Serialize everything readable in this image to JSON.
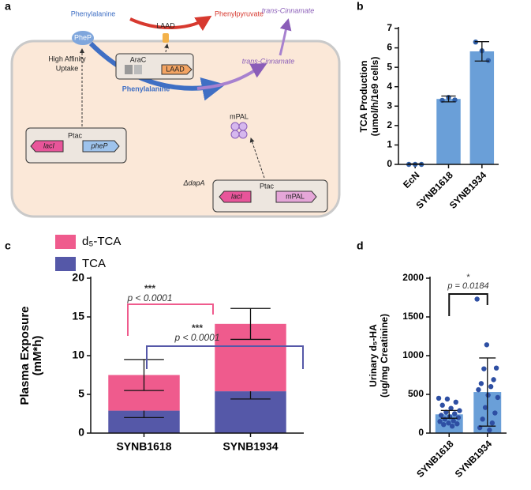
{
  "panel_labels": [
    "a",
    "b",
    "c",
    "d"
  ],
  "diagram": {
    "phenylalanine_out": "Phenylalanine",
    "phep": "PheP",
    "laad_enzyme": "LAAD",
    "phenylpyruvate": "Phenylpyruvate",
    "cinnamate_out": "trans-Cinnamate",
    "uptake": [
      "High Affinity",
      "Uptake"
    ],
    "arac": "AraC",
    "laad_gene": "LAAD",
    "cinnamate_in": "trans-Cinnamate",
    "phenylalanine_in": "Phenylalanine",
    "mpal_enzyme": "mPAL",
    "lacI_1": "lacI",
    "ptac_1": "Ptac",
    "phep_gene": "pheP",
    "dapa": "ΔdapA",
    "lacI_2": "lacI",
    "ptac_2": "Ptac",
    "mpal_gene": "mPAL"
  },
  "chart_data": [
    {
      "type": "bar",
      "ylabel": [
        "TCA Production",
        "(umol/h/1e9 cells)"
      ],
      "categories": [
        "EcN",
        "SYNB1618",
        "SYNB1934"
      ],
      "series": [
        {
          "color": "#6a9fd8",
          "point_color": "#2f5fa8",
          "values": [
            0.02,
            3.37,
            5.82
          ],
          "errors": [
            0.01,
            0.15,
            0.5
          ],
          "points": [
            [
              0,
              0,
              0
            ],
            [
              3.3,
              3.45,
              3.32
            ],
            [
              6.3,
              5.85,
              5.35
            ]
          ]
        }
      ],
      "ylim": [
        0,
        7
      ],
      "yticks": [
        0,
        1,
        2,
        3,
        4,
        5,
        6,
        7
      ]
    },
    {
      "type": "stacked_bar",
      "ylabel": [
        "Plasma Exposure",
        "(mM*h)"
      ],
      "categories": [
        "SYNB1618",
        "SYNB1934"
      ],
      "series": [
        {
          "name": "TCA",
          "color": "#5558a8",
          "values": [
            2.9,
            5.4
          ],
          "errors": [
            0.9,
            1.0
          ]
        },
        {
          "name": "d₅-TCA",
          "color": "#ef5b8d",
          "values": [
            4.6,
            8.7
          ],
          "errors": [
            2.0,
            2.0
          ]
        }
      ],
      "ylim": [
        0,
        20
      ],
      "yticks": [
        0,
        5,
        10,
        15,
        20
      ],
      "legend": "top-left",
      "annotations": [
        "***",
        "p < 0.0001",
        "***",
        "p < 0.0001"
      ]
    },
    {
      "type": "bar",
      "ylabel": [
        "Urinary d₅-HA",
        "(ug/mg Creatinine)"
      ],
      "categories": [
        "SYNB1618",
        "SYNB1934"
      ],
      "series": [
        {
          "color": "#6a9fd8",
          "point_color": "#2e4fa3",
          "values": [
            242,
            530
          ],
          "errors": [
            50,
            440
          ],
          "points": [
            [
              450,
              440,
              400,
              360,
              320,
              290,
              270,
              250,
              230,
              210,
              200,
              180,
              160,
              150,
              130,
              120,
              110,
              90
            ],
            [
              1730,
              1140,
              840,
              830,
              690,
              640,
              600,
              560,
              490,
              460,
              330,
              260,
              180,
              130,
              70,
              40
            ]
          ]
        }
      ],
      "ylim": [
        0,
        2000
      ],
      "yticks": [
        0,
        500,
        1000,
        1500,
        2000
      ],
      "annotations": [
        "*",
        "p = 0.0184"
      ]
    }
  ]
}
